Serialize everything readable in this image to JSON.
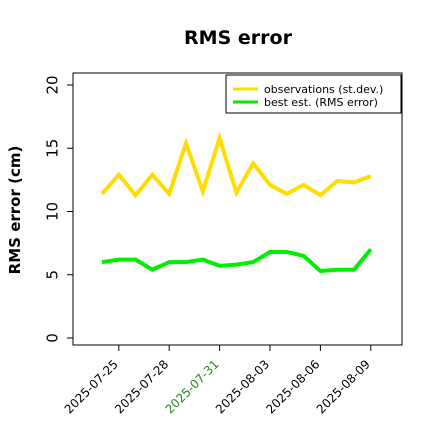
{
  "chart_data": {
    "type": "line",
    "title": "RMS error",
    "xlabel": "",
    "ylabel": "RMS error (cm)",
    "ylim": [
      0,
      20
    ],
    "yticks": [
      "0",
      "5",
      "10",
      "15",
      "20"
    ],
    "x": [
      "2025-07-24",
      "2025-07-25",
      "2025-07-26",
      "2025-07-27",
      "2025-07-28",
      "2025-07-29",
      "2025-07-30",
      "2025-07-31",
      "2025-08-01",
      "2025-08-02",
      "2025-08-03",
      "2025-08-04",
      "2025-08-05",
      "2025-08-06",
      "2025-08-07",
      "2025-08-08",
      "2025-08-09"
    ],
    "xtick_labels": [
      "2025-07-25",
      "2025-07-28",
      "2025-07-31",
      "2025-08-03",
      "2025-08-06",
      "2025-08-09"
    ],
    "highlighted_tick": "2025-07-31",
    "grid": false,
    "legend_position": "top-right",
    "series": [
      {
        "name": "observations (st.dev.)",
        "color": "#ffdd00",
        "values": [
          11.4,
          12.9,
          11.3,
          12.9,
          11.4,
          15.4,
          11.6,
          15.8,
          11.5,
          13.8,
          12.1,
          11.4,
          12.1,
          11.3,
          12.4,
          12.3,
          12.8
        ]
      },
      {
        "name": "best est. (RMS error)",
        "color": "#00ee00",
        "values": [
          6.0,
          6.2,
          6.2,
          5.4,
          6.0,
          6.0,
          6.2,
          5.7,
          5.8,
          6.0,
          6.8,
          6.8,
          6.5,
          5.3,
          5.4,
          5.4,
          7.0
        ]
      }
    ],
    "colors": {
      "axis": "#000000",
      "highlighted_tick": "#228b22"
    }
  }
}
